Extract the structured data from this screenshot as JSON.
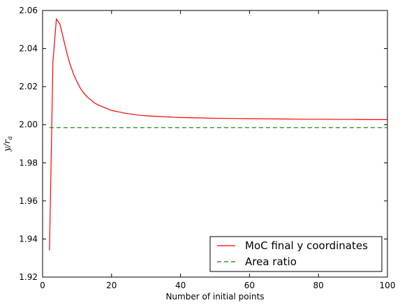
{
  "chart_data": {
    "type": "line",
    "title": "",
    "xlabel": "Number of initial points",
    "ylabel": "y/r_a",
    "ylabel_main": "y/r",
    "ylabel_sub": "a",
    "xlim": [
      0,
      100
    ],
    "ylim": [
      1.92,
      2.06
    ],
    "xticks": [
      0,
      20,
      40,
      60,
      80,
      100
    ],
    "xtick_labels": [
      "0",
      "20",
      "40",
      "60",
      "80",
      "100"
    ],
    "yticks": [
      1.92,
      1.94,
      1.96,
      1.98,
      2.0,
      2.02,
      2.04,
      2.06
    ],
    "ytick_labels": [
      "1.92",
      "1.94",
      "1.96",
      "1.98",
      "2.00",
      "2.02",
      "2.04",
      "2.06"
    ],
    "grid": false,
    "legend_position": "lower-right",
    "series": [
      {
        "name": "MoC final y coordinates",
        "color": "#ff0000",
        "style": "solid",
        "x": [
          2,
          3,
          4,
          5,
          6,
          7,
          8,
          9,
          10,
          11,
          12,
          13,
          14,
          15,
          16,
          18,
          20,
          22,
          24,
          26,
          28,
          30,
          35,
          40,
          45,
          50,
          55,
          60,
          65,
          70,
          75,
          80,
          85,
          90,
          95,
          100
        ],
        "y": [
          1.934,
          2.033,
          2.0555,
          2.053,
          2.0455,
          2.038,
          2.0315,
          2.0265,
          2.0225,
          2.019,
          2.0165,
          2.0145,
          2.013,
          2.0115,
          2.0105,
          2.009,
          2.0075,
          2.0068,
          2.006,
          2.0055,
          2.005,
          2.0047,
          2.0042,
          2.0038,
          2.0036,
          2.0034,
          2.0033,
          2.0032,
          2.0031,
          2.003,
          2.0029,
          2.0029,
          2.0028,
          2.0028,
          2.0027,
          2.0027
        ]
      },
      {
        "name": "Area ratio",
        "color": "#008000",
        "style": "dashed",
        "x": [
          2,
          100
        ],
        "y": [
          1.9985,
          1.9985
        ]
      }
    ]
  }
}
